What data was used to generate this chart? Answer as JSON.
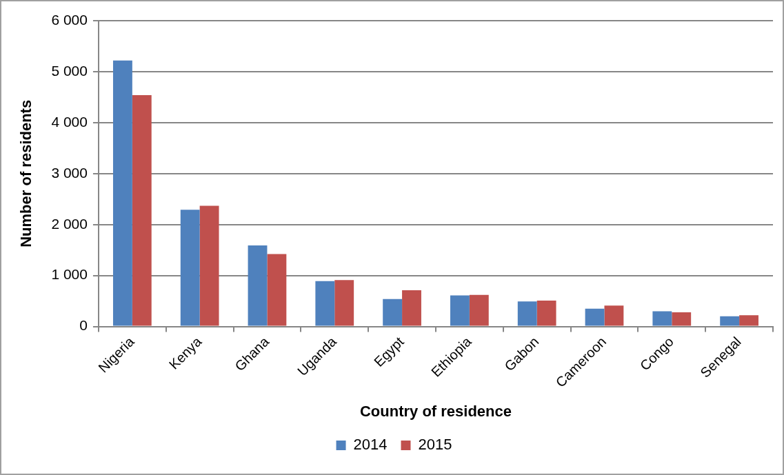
{
  "chart_data": {
    "type": "bar",
    "xlabel": "Country of residence",
    "ylabel": "Number of residents",
    "categories": [
      "Nigeria",
      "Kenya",
      "Ghana",
      "Uganda",
      "Egypt",
      "Ethiopia",
      "Gabon",
      "Cameroon",
      "Congo",
      "Senegal"
    ],
    "series": [
      {
        "name": "2014",
        "color": "#4f81bd",
        "values": [
          5220,
          2290,
          1590,
          890,
          540,
          610,
          490,
          350,
          300,
          200
        ]
      },
      {
        "name": "2015",
        "color": "#c0504d",
        "values": [
          4540,
          2370,
          1420,
          910,
          710,
          620,
          510,
          410,
          280,
          220
        ]
      }
    ],
    "ylim": [
      0,
      6000
    ],
    "yticks": [
      {
        "value": 0,
        "label": "0"
      },
      {
        "value": 1000,
        "label": "1 000"
      },
      {
        "value": 2000,
        "label": "2 000"
      },
      {
        "value": 3000,
        "label": "3 000"
      },
      {
        "value": 4000,
        "label": "4 000"
      },
      {
        "value": 5000,
        "label": "5 000"
      },
      {
        "value": 6000,
        "label": "6 000"
      }
    ],
    "grid": "y",
    "legend": "bottom"
  }
}
